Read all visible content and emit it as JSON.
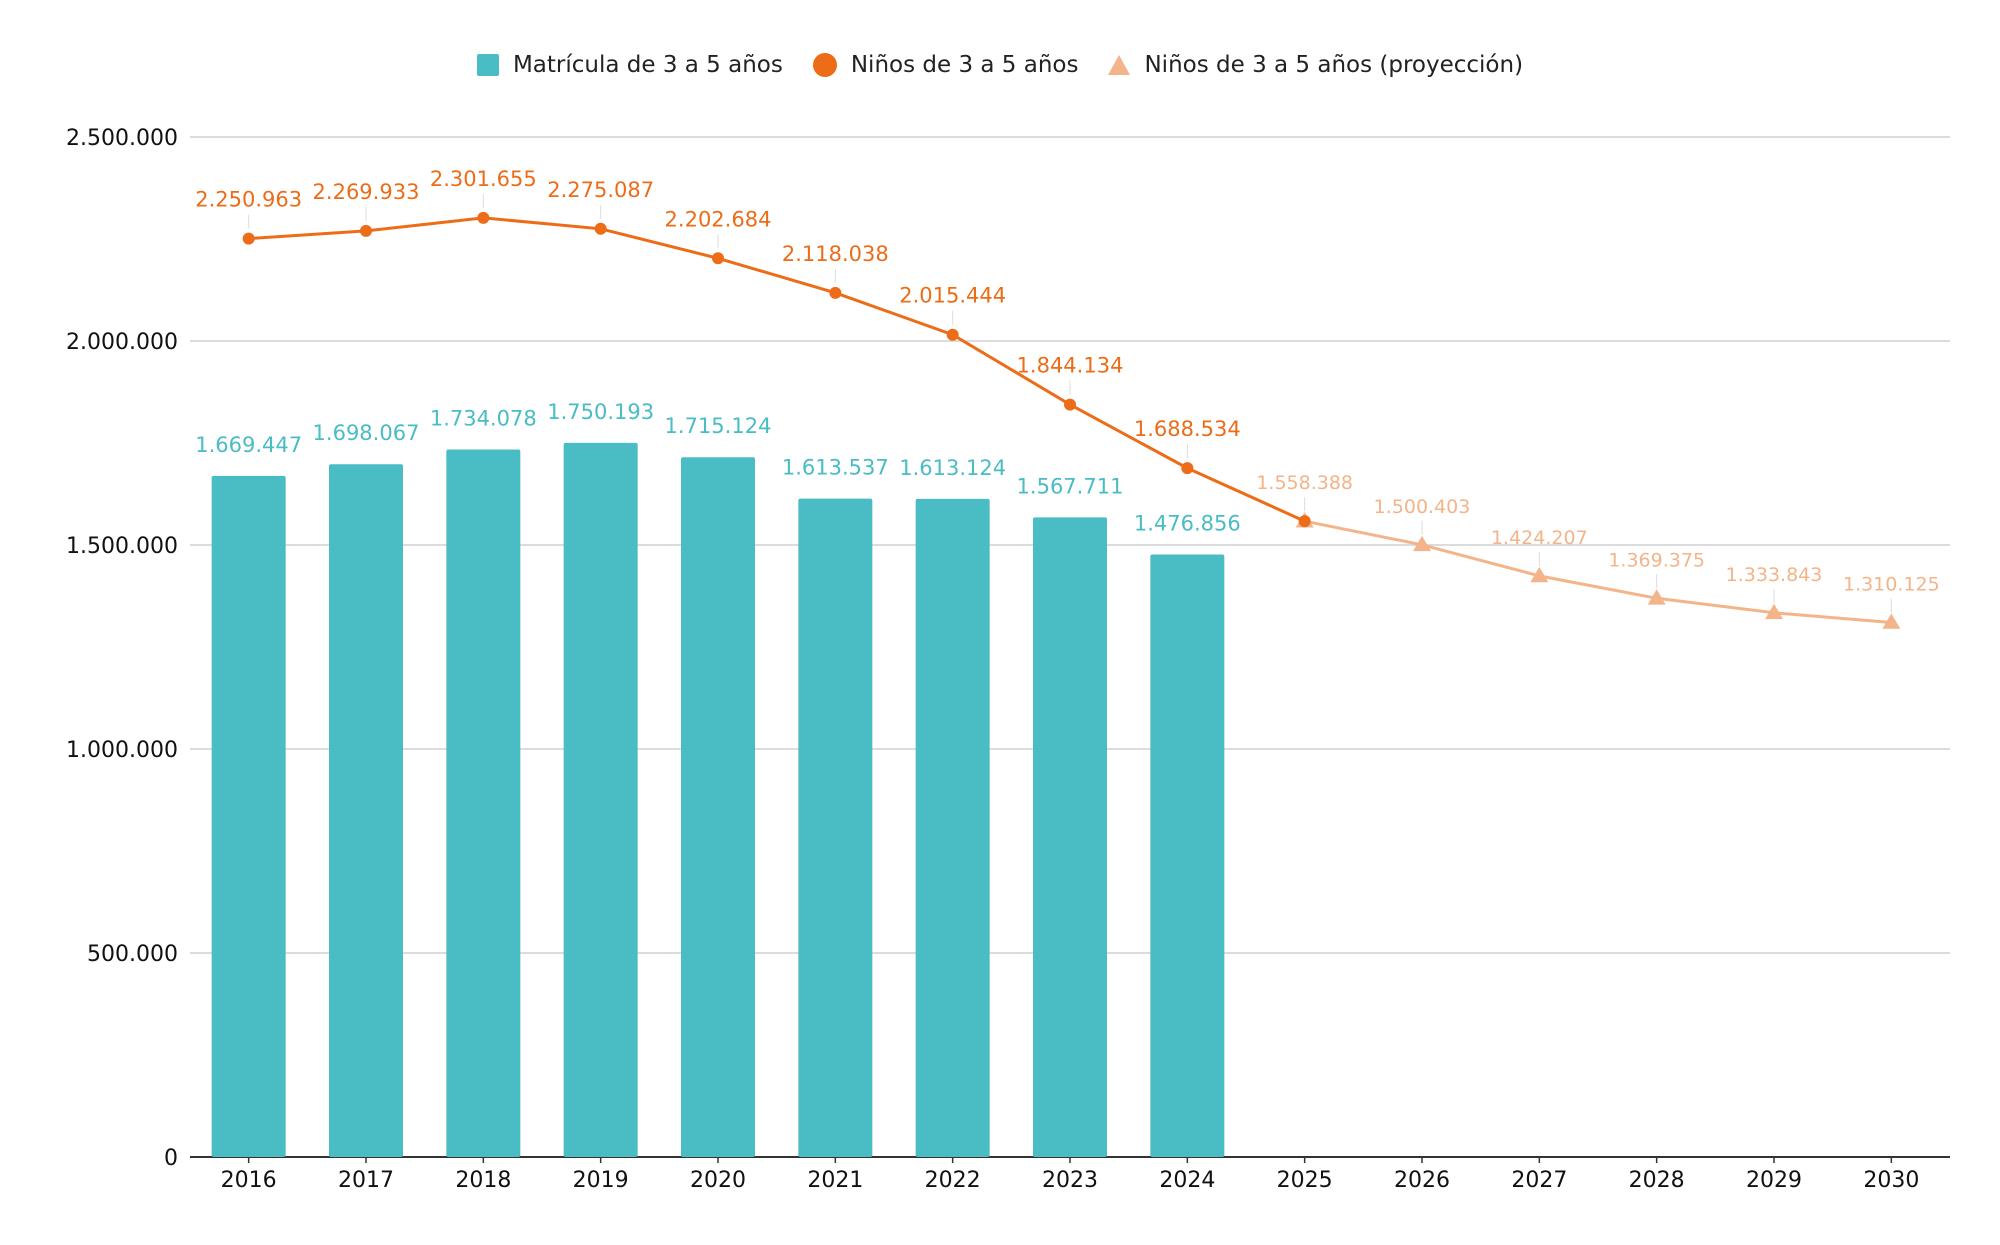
{
  "colors": {
    "bars": "#49BCC4",
    "line": "#EC6C17",
    "projection": "#F3B48A",
    "grid": "#D0D0D0",
    "axis": "#333333",
    "text": "#111111"
  },
  "chart_data": {
    "type": "bar",
    "title": "",
    "xlabel": "",
    "ylabel": "",
    "ylim": [
      0,
      2500000
    ],
    "yticks": [
      0,
      500000,
      1000000,
      1500000,
      2000000,
      2500000
    ],
    "ytick_labels": [
      "0",
      "500.000",
      "1.000.000",
      "1.500.000",
      "2.000.000",
      "2.500.000"
    ],
    "grid": true,
    "legend_position": "top-center",
    "categories": [
      "2016",
      "2017",
      "2018",
      "2019",
      "2020",
      "2021",
      "2022",
      "2023",
      "2024",
      "2025",
      "2026",
      "2027",
      "2028",
      "2029",
      "2030"
    ],
    "series": [
      {
        "name": "Matrícula de 3 a 5 años",
        "type": "bar",
        "marker": "square",
        "values": [
          1669447,
          1698067,
          1734078,
          1750193,
          1715124,
          1613537,
          1613124,
          1567711,
          1476856,
          null,
          null,
          null,
          null,
          null,
          null
        ],
        "labels": [
          "1.669.447",
          "1.698.067",
          "1.734.078",
          "1.750.193",
          "1.715.124",
          "1.613.537",
          "1.613.124",
          "1.567.711",
          "1.476.856",
          null,
          null,
          null,
          null,
          null,
          null
        ]
      },
      {
        "name": "Niños de 3 a 5 años",
        "type": "line",
        "marker": "circle",
        "values": [
          2250963,
          2269933,
          2301655,
          2275087,
          2202684,
          2118038,
          2015444,
          1844134,
          1688534,
          1558388,
          null,
          null,
          null,
          null,
          null
        ],
        "labels": [
          "2.250.963",
          "2.269.933",
          "2.301.655",
          "2.275.087",
          "2.202.684",
          "2.118.038",
          "2.015.444",
          "1.844.134",
          "1.688.534",
          null,
          null,
          null,
          null,
          null,
          null
        ]
      },
      {
        "name": "Niños de 3 a 5 años (proyección)",
        "type": "line",
        "marker": "triangle",
        "values": [
          null,
          null,
          null,
          null,
          null,
          null,
          null,
          null,
          null,
          1558388,
          1500403,
          1424207,
          1369375,
          1333843,
          1310125
        ],
        "labels": [
          null,
          null,
          null,
          null,
          null,
          null,
          null,
          null,
          null,
          "1.558.388",
          "1.500.403",
          "1.424.207",
          "1.369.375",
          "1.333.843",
          "1.310.125"
        ]
      }
    ]
  }
}
